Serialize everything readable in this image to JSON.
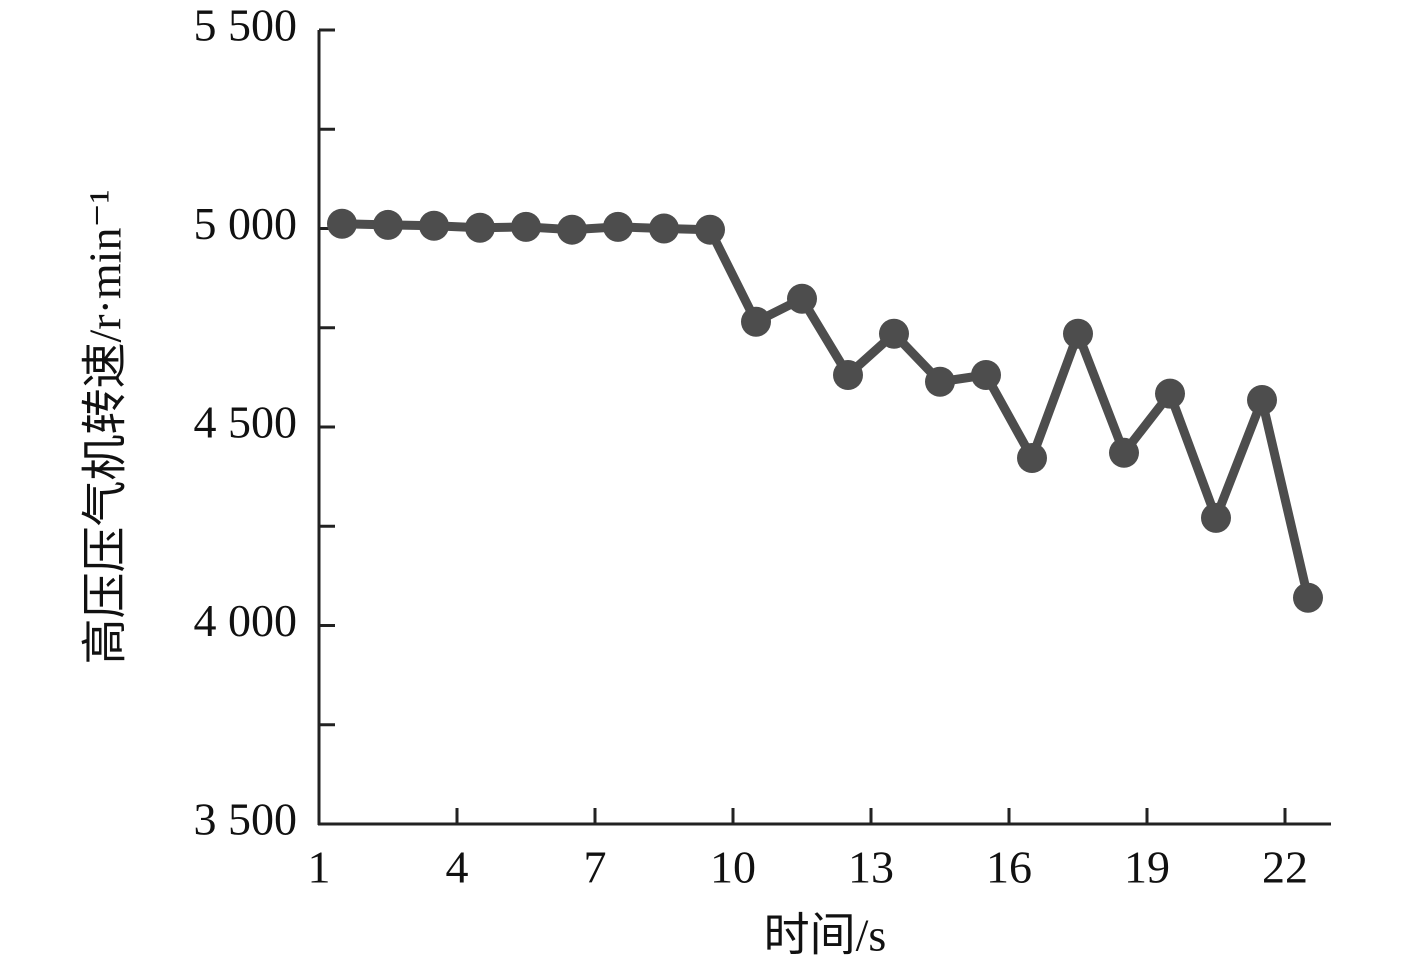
{
  "chart_data": {
    "type": "line",
    "x_label": "时间/s",
    "y_label": "高压压气机转速/r·min⁻¹",
    "series": [
      {
        "color": "#4d4d4d",
        "x": [
          1.5,
          2.5,
          3.5,
          4.5,
          5.5,
          6.5,
          7.5,
          8.5,
          9.5,
          10.5,
          11.5,
          12.5,
          13.5,
          14.5,
          15.5,
          16.5,
          17.5,
          18.5,
          19.5,
          20.5,
          21.5,
          22.5
        ],
        "values": [
          5012,
          5009,
          5007,
          5002,
          5004,
          4997,
          5004,
          5000,
          4997,
          4765,
          4823,
          4631,
          4735,
          4614,
          4631,
          4422,
          4735,
          4435,
          4584,
          4271,
          4568,
          4070
        ]
      }
    ],
    "xlim": [
      1,
      23
    ],
    "xticks": [
      1,
      4,
      7,
      10,
      13,
      16,
      19,
      22
    ],
    "ylim": [
      3500,
      5500
    ],
    "yticks": [
      {
        "value": 3500,
        "label": "3 500"
      },
      {
        "value": 4000,
        "label": "4 000"
      },
      {
        "value": 4500,
        "label": "4 500"
      },
      {
        "value": 5000,
        "label": "5 000"
      },
      {
        "value": 5500,
        "label": "5 500"
      }
    ],
    "y_minor_ticks": [
      3750,
      4250,
      4750,
      5250
    ],
    "grid": false
  }
}
